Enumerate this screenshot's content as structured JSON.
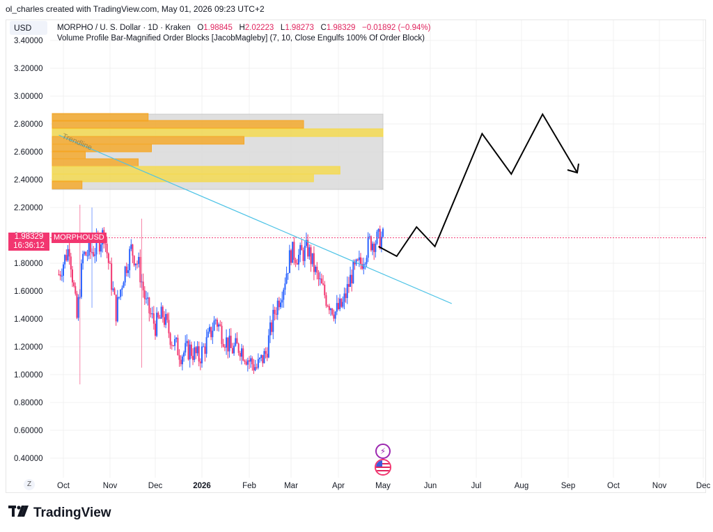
{
  "header": {
    "credit": "ol_charles created with TradingView.com, May 01, 2026 09:23 UTC+2"
  },
  "toolbar": {
    "currency": "USD",
    "reset_label": "Z"
  },
  "legend": {
    "symbol_line": "MORPHO / U. S. Dollar · 1D · Kraken",
    "o_label": "O",
    "o_value": "1.98845",
    "h_label": "H",
    "h_value": "2.02223",
    "l_label": "L",
    "l_value": "1.98273",
    "c_label": "C",
    "c_value": "1.98329",
    "change": "−0.01892 (−0.94%)",
    "indicator": "Volume Profile Bar-Magnified Order Blocks [JacobMagleby] (7, 10, Close Engulfs 100% Of Order Block)"
  },
  "price_badge": {
    "price": "1.98329",
    "countdown": "16:36:12",
    "symbol": "MORPHOUSD"
  },
  "brand": {
    "logo_text": "TradingView"
  },
  "annotation": {
    "trendline_label": "Trendline"
  },
  "colors": {
    "up": "#2962ff",
    "down": "#f23670",
    "trendline": "#4dc3e6",
    "profile_orange": "#f5a623",
    "profile_yellow": "#f5d94a",
    "projection": "#000000",
    "profile_box": "#d9d9d9"
  },
  "chart_data": {
    "type": "candlestick",
    "title": "MORPHO / U. S. Dollar · 1D · Kraken",
    "y_ticks": [
      "3.40000",
      "3.20000",
      "3.00000",
      "2.80000",
      "2.60000",
      "2.40000",
      "2.20000",
      "2.00000",
      "1.80000",
      "1.60000",
      "1.40000",
      "1.20000",
      "1.00000",
      "0.80000",
      "0.60000",
      "0.40000"
    ],
    "ylim": [
      0.27,
      3.45
    ],
    "x_ticks": [
      "Oct",
      "Nov",
      "Dec",
      "2026",
      "Feb",
      "Mar",
      "Apr",
      "May",
      "Jun",
      "Jul",
      "Aug",
      "Sep",
      "Oct",
      "Nov",
      "Dec"
    ],
    "last_price": 1.98329,
    "close_path": [
      [
        "2025-09-28",
        1.72
      ],
      [
        "2025-10-05",
        1.92
      ],
      [
        "2025-10-10",
        1.4
      ],
      [
        "2025-10-14",
        1.85
      ],
      [
        "2025-10-22",
        1.9
      ],
      [
        "2025-10-28",
        2.02
      ],
      [
        "2025-11-05",
        1.45
      ],
      [
        "2025-11-10",
        1.72
      ],
      [
        "2025-11-15",
        1.9
      ],
      [
        "2025-11-20",
        1.78
      ],
      [
        "2025-11-25",
        1.5
      ],
      [
        "2025-12-01",
        1.35
      ],
      [
        "2025-12-06",
        1.43
      ],
      [
        "2025-12-12",
        1.25
      ],
      [
        "2025-12-18",
        1.15
      ],
      [
        "2025-12-24",
        1.18
      ],
      [
        "2025-12-30",
        1.12
      ],
      [
        "2026-01-05",
        1.25
      ],
      [
        "2026-01-10",
        1.4
      ],
      [
        "2026-01-14",
        1.3
      ],
      [
        "2026-01-20",
        1.18
      ],
      [
        "2026-01-26",
        1.2
      ],
      [
        "2026-02-01",
        1.1
      ],
      [
        "2026-02-06",
        1.05
      ],
      [
        "2026-02-12",
        1.15
      ],
      [
        "2026-02-18",
        1.45
      ],
      [
        "2026-02-24",
        1.65
      ],
      [
        "2026-03-01",
        1.88
      ],
      [
        "2026-03-06",
        1.85
      ],
      [
        "2026-03-12",
        1.9
      ],
      [
        "2026-03-18",
        1.7
      ],
      [
        "2026-03-24",
        1.55
      ],
      [
        "2026-03-30",
        1.45
      ],
      [
        "2026-04-04",
        1.5
      ],
      [
        "2026-04-10",
        1.72
      ],
      [
        "2026-04-16",
        1.8
      ],
      [
        "2026-04-22",
        1.95
      ],
      [
        "2026-05-01",
        1.98
      ]
    ],
    "order_block": {
      "bottom": 2.33,
      "top": 2.87
    },
    "volume_profile_bars": [
      {
        "price": 2.845,
        "rel_length": 0.29,
        "color": "orange"
      },
      {
        "price": 2.795,
        "rel_length": 0.76,
        "color": "orange"
      },
      {
        "price": 2.735,
        "rel_length": 1.0,
        "color": "yellow"
      },
      {
        "price": 2.68,
        "rel_length": 0.58,
        "color": "orange"
      },
      {
        "price": 2.625,
        "rel_length": 0.3,
        "color": "orange"
      },
      {
        "price": 2.575,
        "rel_length": 0.1,
        "color": "orange"
      },
      {
        "price": 2.52,
        "rel_length": 0.26,
        "color": "orange"
      },
      {
        "price": 2.465,
        "rel_length": 0.87,
        "color": "yellow"
      },
      {
        "price": 2.41,
        "rel_length": 0.79,
        "color": "yellow"
      },
      {
        "price": 2.36,
        "rel_length": 0.09,
        "color": "orange"
      }
    ],
    "trendline": {
      "start": [
        "2025-09-28",
        2.72
      ],
      "end": [
        "2026-06-15",
        1.51
      ]
    },
    "projection_path": [
      [
        "2026-04-28",
        1.92
      ],
      [
        "2026-05-10",
        1.85
      ],
      [
        "2026-05-23",
        2.06
      ],
      [
        "2026-06-04",
        1.92
      ],
      [
        "2026-07-05",
        2.73
      ],
      [
        "2026-07-25",
        2.44
      ],
      [
        "2026-08-15",
        2.87
      ],
      [
        "2026-09-07",
        2.45
      ]
    ],
    "grid": true
  }
}
